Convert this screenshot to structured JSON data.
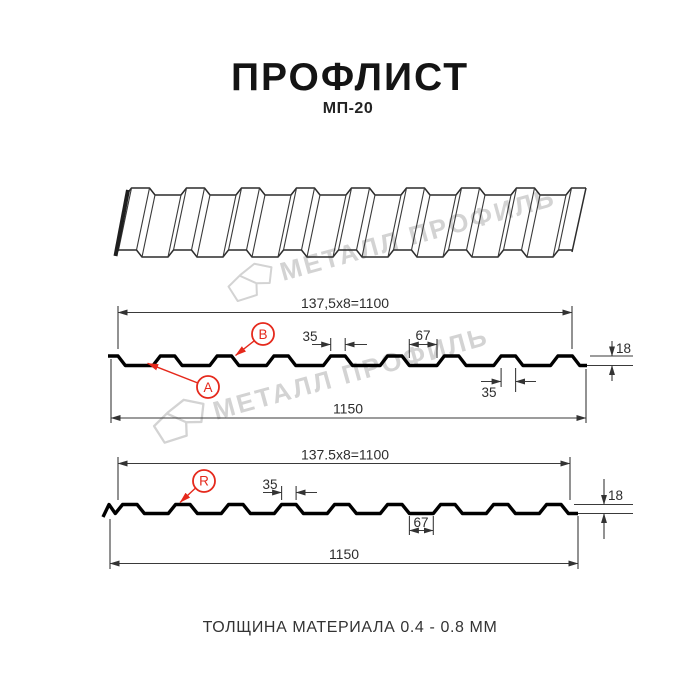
{
  "title": "ПРОФЛИСТ",
  "subtitle": "МП-20",
  "footer_note": "ТОЛЩИНА МАТЕРИАЛА 0.4 - 0.8 ММ",
  "watermark": {
    "brand_text": "МЕТАЛЛ ПРОФИЛЬ"
  },
  "colors": {
    "accent_red": "#e5291c",
    "drawing_line": "#3a3a3a",
    "profile_outline": "#000000",
    "watermark_gray": "#d3d3d3",
    "background": "#ffffff"
  },
  "section_top": {
    "dims": {
      "pitch_formula": "137,5x8=1100",
      "overall_width": "1150",
      "rib_width_top": "35",
      "valley_width": "67",
      "rib_width_bottom": "35",
      "height": "18"
    },
    "labels": {
      "a": "A",
      "b": "B"
    }
  },
  "section_bottom": {
    "dims": {
      "pitch_formula": "137.5x8=1100",
      "overall_width": "1150",
      "rib_width": "35",
      "valley_width": "67",
      "height": "18"
    },
    "labels": {
      "r": "R"
    }
  }
}
